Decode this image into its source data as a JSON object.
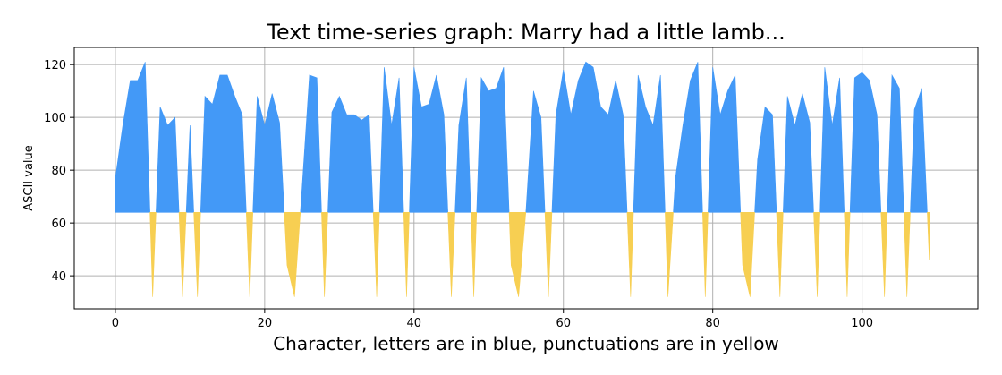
{
  "chart_data": {
    "type": "area",
    "title": "Text time-series graph: Marry had a little lamb...",
    "xlabel": "Character, letters are in blue, punctuations are in yellow",
    "ylabel": "ASCII value",
    "text": "Marry had a little lamb, Its fleece was white as snow, And everywhere that Mary went, The lamb was sure to go.",
    "baseline": 64,
    "xlim": [
      -5.5,
      115.5
    ],
    "ylim": [
      27.5,
      126.5
    ],
    "xticks": [
      0,
      20,
      40,
      60,
      80,
      100
    ],
    "yticks": [
      40,
      60,
      80,
      100,
      120
    ],
    "grid": true,
    "series": [
      {
        "values": [
          77,
          97,
          114,
          114,
          121,
          32,
          104,
          97,
          100,
          32,
          97,
          32,
          108,
          105,
          116,
          116,
          108,
          101,
          32,
          108,
          97,
          109,
          98,
          44,
          32,
          73,
          116,
          115,
          32,
          102,
          108,
          101,
          101,
          99,
          101,
          32,
          119,
          97,
          115,
          32,
          119,
          104,
          105,
          116,
          101,
          32,
          97,
          115,
          32,
          115,
          110,
          111,
          119,
          44,
          32,
          65,
          110,
          100,
          32,
          101,
          118,
          101,
          114,
          121,
          119,
          104,
          101,
          114,
          101,
          32,
          116,
          104,
          97,
          116,
          32,
          77,
          97,
          114,
          121,
          32,
          119,
          101,
          110,
          116,
          44,
          32,
          84,
          104,
          101,
          32,
          108,
          97,
          109,
          98,
          32,
          119,
          97,
          115,
          32,
          115,
          117,
          114,
          101,
          32,
          116,
          111,
          32,
          103,
          111,
          46
        ]
      }
    ],
    "colors": {
      "letters": "#4399f7",
      "punctuation": "#f7cf52"
    }
  }
}
